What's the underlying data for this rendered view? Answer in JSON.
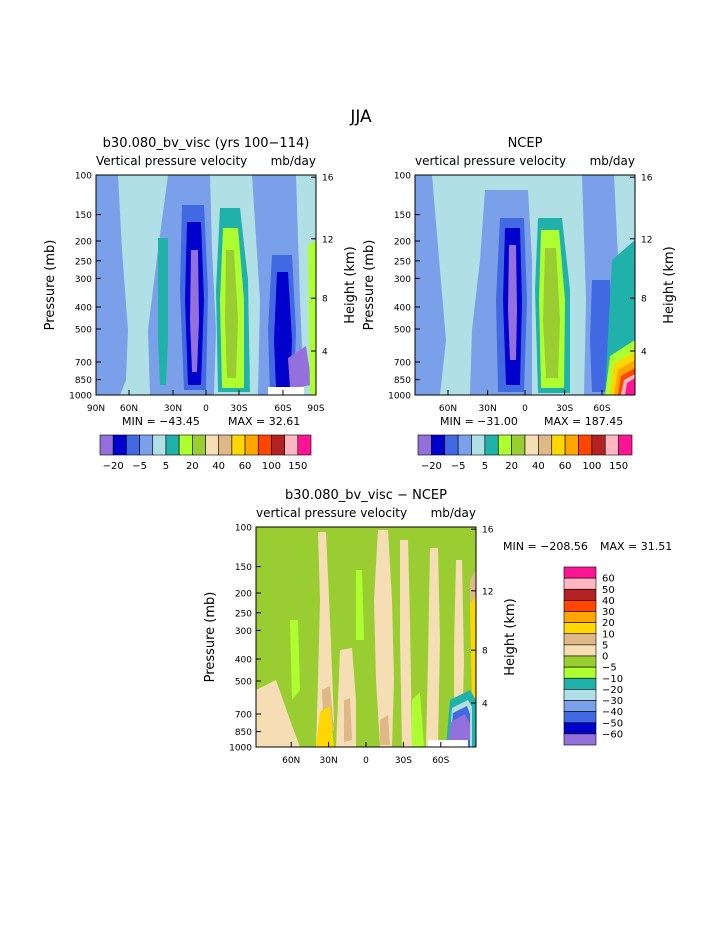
{
  "figure_title": "JJA",
  "colors": {
    "main_ramp": [
      "#9370db",
      "#0000cd",
      "#4169e1",
      "#7aa0ea",
      "#b0e0e6",
      "#20b2aa",
      "#adff2f",
      "#9acd32",
      "#f5deb3",
      "#deb887",
      "#ffd700",
      "#ffa500",
      "#ff4500",
      "#b22222",
      "#ffb6c1",
      "#ff1493"
    ],
    "diff_ramp": [
      "#9370db",
      "#0000cd",
      "#4169e1",
      "#7aa0ea",
      "#b0e0e6",
      "#20b2aa",
      "#adff2f",
      "#9acd32",
      "#f5deb3",
      "#deb887",
      "#ffd700",
      "#ffa500",
      "#ff4500",
      "#b22222",
      "#ffb6c1",
      "#ff1493"
    ]
  },
  "chart_data": [
    {
      "type": "heatmap",
      "id": "model",
      "title": "b30.080_bv_visc (yrs 100−114)",
      "subtitle_left": "Vertical pressure velocity",
      "subtitle_right": "mb/day",
      "ylabel": "Pressure (mb)",
      "y2label": "Height (km)",
      "x_ticks": [
        "90N",
        "60N",
        "30N",
        "0",
        "30S",
        "60S",
        "90S"
      ],
      "y_ticks": [
        "100",
        "150",
        "200",
        "250",
        "300",
        "400",
        "500",
        "700",
        "850",
        "1000"
      ],
      "y2_ticks": [
        "16",
        "12",
        "8",
        "4"
      ],
      "min_label": "MIN = −43.45",
      "max_label": "MAX =  32.61",
      "min": -43.45,
      "max": 32.61,
      "colorbar_labels": [
        "−20",
        "−5",
        "5",
        "20",
        "40",
        "60",
        "100",
        "150"
      ]
    },
    {
      "type": "heatmap",
      "id": "ncep",
      "title": "NCEP",
      "subtitle_left": "vertical pressure velocity",
      "subtitle_right": "mb/day",
      "ylabel": "Pressure (mb)",
      "y2label": "Height (km)",
      "x_ticks": [
        "60N",
        "30N",
        "0",
        "30S",
        "60S"
      ],
      "y_ticks": [
        "100",
        "150",
        "200",
        "250",
        "300",
        "400",
        "500",
        "700",
        "850",
        "1000"
      ],
      "y2_ticks": [
        "16",
        "12",
        "8",
        "4"
      ],
      "min_label": "MIN = −31.00",
      "max_label": "MAX = 187.45",
      "min": -31.0,
      "max": 187.45,
      "colorbar_labels": [
        "−20",
        "−5",
        "5",
        "20",
        "40",
        "60",
        "100",
        "150"
      ]
    },
    {
      "type": "heatmap",
      "id": "diff",
      "title": "b30.080_bv_visc − NCEP",
      "subtitle_left": "vertical pressure velocity",
      "subtitle_right": "mb/day",
      "ylabel": "Pressure (mb)",
      "y2label": "Height (km)",
      "x_ticks": [
        "60N",
        "30N",
        "0",
        "30S",
        "60S"
      ],
      "y_ticks": [
        "100",
        "150",
        "200",
        "250",
        "300",
        "400",
        "500",
        "700",
        "850",
        "1000"
      ],
      "y2_ticks": [
        "16",
        "12",
        "8",
        "4"
      ],
      "min_label": "MIN = −208.56",
      "max_label": "MAX =  31.51",
      "min": -208.56,
      "max": 31.51,
      "colorbar_labels": [
        "60",
        "50",
        "40",
        "30",
        "20",
        "10",
        "5",
        "0",
        "−5",
        "−10",
        "−20",
        "−30",
        "−40",
        "−50",
        "−60"
      ]
    }
  ]
}
